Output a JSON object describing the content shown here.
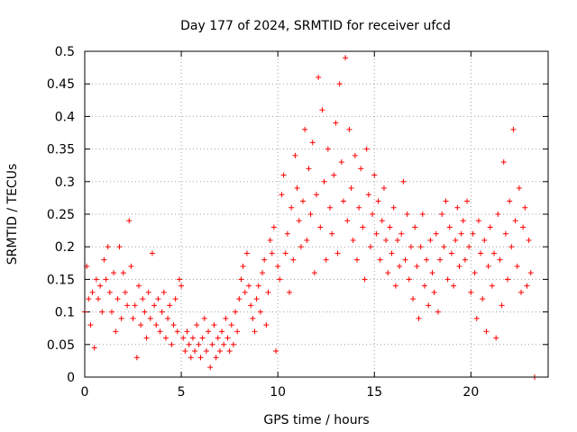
{
  "chart_data": {
    "type": "scatter",
    "title": "Day 177 of 2024, SRMTID for receiver ufcd",
    "xlabel": "GPS time / hours",
    "ylabel": "SRMTID / TECUs",
    "xlim": [
      0,
      24
    ],
    "ylim": [
      0,
      0.5
    ],
    "xticks": [
      0,
      5,
      10,
      15,
      20
    ],
    "yticks": [
      0,
      0.05,
      0.1,
      0.15,
      0.2,
      0.25,
      0.3,
      0.35,
      0.4,
      0.45,
      0.5
    ],
    "grid": true,
    "marker": "plus",
    "color": "#ff0000",
    "series": [
      {
        "name": "SRMTID",
        "points": [
          [
            0.0,
            0.1
          ],
          [
            0.1,
            0.17
          ],
          [
            0.2,
            0.12
          ],
          [
            0.3,
            0.08
          ],
          [
            0.4,
            0.13
          ],
          [
            0.5,
            0.045
          ],
          [
            0.6,
            0.15
          ],
          [
            0.7,
            0.12
          ],
          [
            0.8,
            0.14
          ],
          [
            0.9,
            0.1
          ],
          [
            1.0,
            0.18
          ],
          [
            1.1,
            0.15
          ],
          [
            1.2,
            0.2
          ],
          [
            1.3,
            0.13
          ],
          [
            1.4,
            0.1
          ],
          [
            1.5,
            0.16
          ],
          [
            1.6,
            0.07
          ],
          [
            1.7,
            0.12
          ],
          [
            1.8,
            0.2
          ],
          [
            1.9,
            0.09
          ],
          [
            2.0,
            0.16
          ],
          [
            2.1,
            0.13
          ],
          [
            2.2,
            0.11
          ],
          [
            2.3,
            0.24
          ],
          [
            2.4,
            0.17
          ],
          [
            2.5,
            0.09
          ],
          [
            2.6,
            0.11
          ],
          [
            2.7,
            0.03
          ],
          [
            2.8,
            0.14
          ],
          [
            2.9,
            0.08
          ],
          [
            3.0,
            0.12
          ],
          [
            3.1,
            0.1
          ],
          [
            3.2,
            0.06
          ],
          [
            3.3,
            0.13
          ],
          [
            3.4,
            0.09
          ],
          [
            3.5,
            0.19
          ],
          [
            3.6,
            0.11
          ],
          [
            3.7,
            0.08
          ],
          [
            3.8,
            0.12
          ],
          [
            3.9,
            0.07
          ],
          [
            4.0,
            0.1
          ],
          [
            4.1,
            0.13
          ],
          [
            4.2,
            0.06
          ],
          [
            4.3,
            0.09
          ],
          [
            4.4,
            0.11
          ],
          [
            4.5,
            0.05
          ],
          [
            4.6,
            0.08
          ],
          [
            4.7,
            0.12
          ],
          [
            4.8,
            0.07
          ],
          [
            4.9,
            0.15
          ],
          [
            5.0,
            0.14
          ],
          [
            5.1,
            0.06
          ],
          [
            5.2,
            0.04
          ],
          [
            5.3,
            0.07
          ],
          [
            5.4,
            0.05
          ],
          [
            5.5,
            0.03
          ],
          [
            5.6,
            0.06
          ],
          [
            5.7,
            0.04
          ],
          [
            5.8,
            0.08
          ],
          [
            5.9,
            0.05
          ],
          [
            6.0,
            0.03
          ],
          [
            6.1,
            0.06
          ],
          [
            6.2,
            0.09
          ],
          [
            6.3,
            0.04
          ],
          [
            6.4,
            0.07
          ],
          [
            6.5,
            0.015
          ],
          [
            6.6,
            0.05
          ],
          [
            6.7,
            0.08
          ],
          [
            6.8,
            0.03
          ],
          [
            6.9,
            0.06
          ],
          [
            7.0,
            0.04
          ],
          [
            7.1,
            0.07
          ],
          [
            7.2,
            0.05
          ],
          [
            7.3,
            0.09
          ],
          [
            7.4,
            0.06
          ],
          [
            7.5,
            0.04
          ],
          [
            7.6,
            0.08
          ],
          [
            7.7,
            0.05
          ],
          [
            7.8,
            0.1
          ],
          [
            7.9,
            0.07
          ],
          [
            8.0,
            0.12
          ],
          [
            8.1,
            0.15
          ],
          [
            8.2,
            0.17
          ],
          [
            8.3,
            0.13
          ],
          [
            8.4,
            0.19
          ],
          [
            8.5,
            0.14
          ],
          [
            8.6,
            0.11
          ],
          [
            8.7,
            0.09
          ],
          [
            8.8,
            0.07
          ],
          [
            8.9,
            0.12
          ],
          [
            9.0,
            0.14
          ],
          [
            9.1,
            0.1
          ],
          [
            9.2,
            0.16
          ],
          [
            9.3,
            0.18
          ],
          [
            9.4,
            0.08
          ],
          [
            9.5,
            0.13
          ],
          [
            9.6,
            0.21
          ],
          [
            9.7,
            0.19
          ],
          [
            9.8,
            0.23
          ],
          [
            9.9,
            0.04
          ],
          [
            10.0,
            0.17
          ],
          [
            10.1,
            0.15
          ],
          [
            10.2,
            0.28
          ],
          [
            10.3,
            0.31
          ],
          [
            10.4,
            0.19
          ],
          [
            10.5,
            0.22
          ],
          [
            10.6,
            0.13
          ],
          [
            10.7,
            0.26
          ],
          [
            10.8,
            0.18
          ],
          [
            10.9,
            0.34
          ],
          [
            11.0,
            0.29
          ],
          [
            11.1,
            0.24
          ],
          [
            11.2,
            0.2
          ],
          [
            11.3,
            0.27
          ],
          [
            11.4,
            0.38
          ],
          [
            11.5,
            0.21
          ],
          [
            11.6,
            0.32
          ],
          [
            11.7,
            0.25
          ],
          [
            11.8,
            0.36
          ],
          [
            11.9,
            0.16
          ],
          [
            12.0,
            0.28
          ],
          [
            12.1,
            0.46
          ],
          [
            12.2,
            0.23
          ],
          [
            12.3,
            0.41
          ],
          [
            12.4,
            0.3
          ],
          [
            12.5,
            0.18
          ],
          [
            12.6,
            0.35
          ],
          [
            12.7,
            0.26
          ],
          [
            12.8,
            0.22
          ],
          [
            12.9,
            0.31
          ],
          [
            13.0,
            0.39
          ],
          [
            13.1,
            0.19
          ],
          [
            13.2,
            0.45
          ],
          [
            13.3,
            0.33
          ],
          [
            13.4,
            0.27
          ],
          [
            13.5,
            0.49
          ],
          [
            13.6,
            0.24
          ],
          [
            13.7,
            0.38
          ],
          [
            13.8,
            0.29
          ],
          [
            13.9,
            0.21
          ],
          [
            14.0,
            0.34
          ],
          [
            14.1,
            0.18
          ],
          [
            14.2,
            0.26
          ],
          [
            14.3,
            0.32
          ],
          [
            14.4,
            0.23
          ],
          [
            14.5,
            0.15
          ],
          [
            14.6,
            0.35
          ],
          [
            14.7,
            0.28
          ],
          [
            14.8,
            0.2
          ],
          [
            14.9,
            0.25
          ],
          [
            15.0,
            0.31
          ],
          [
            15.1,
            0.22
          ],
          [
            15.2,
            0.27
          ],
          [
            15.3,
            0.18
          ],
          [
            15.4,
            0.24
          ],
          [
            15.5,
            0.29
          ],
          [
            15.6,
            0.21
          ],
          [
            15.7,
            0.16
          ],
          [
            15.8,
            0.23
          ],
          [
            15.9,
            0.19
          ],
          [
            16.0,
            0.26
          ],
          [
            16.1,
            0.14
          ],
          [
            16.2,
            0.21
          ],
          [
            16.3,
            0.17
          ],
          [
            16.4,
            0.22
          ],
          [
            16.5,
            0.3
          ],
          [
            16.6,
            0.18
          ],
          [
            16.7,
            0.25
          ],
          [
            16.8,
            0.15
          ],
          [
            16.9,
            0.2
          ],
          [
            17.0,
            0.12
          ],
          [
            17.1,
            0.23
          ],
          [
            17.2,
            0.17
          ],
          [
            17.3,
            0.09
          ],
          [
            17.4,
            0.2
          ],
          [
            17.5,
            0.25
          ],
          [
            17.6,
            0.14
          ],
          [
            17.7,
            0.18
          ],
          [
            17.8,
            0.11
          ],
          [
            17.9,
            0.21
          ],
          [
            18.0,
            0.16
          ],
          [
            18.1,
            0.13
          ],
          [
            18.2,
            0.22
          ],
          [
            18.3,
            0.1
          ],
          [
            18.4,
            0.18
          ],
          [
            18.5,
            0.25
          ],
          [
            18.6,
            0.2
          ],
          [
            18.7,
            0.27
          ],
          [
            18.8,
            0.15
          ],
          [
            18.9,
            0.23
          ],
          [
            19.0,
            0.19
          ],
          [
            19.1,
            0.14
          ],
          [
            19.2,
            0.21
          ],
          [
            19.3,
            0.26
          ],
          [
            19.4,
            0.17
          ],
          [
            19.5,
            0.22
          ],
          [
            19.6,
            0.24
          ],
          [
            19.7,
            0.18
          ],
          [
            19.8,
            0.27
          ],
          [
            19.9,
            0.2
          ],
          [
            20.0,
            0.13
          ],
          [
            20.1,
            0.22
          ],
          [
            20.2,
            0.16
          ],
          [
            20.3,
            0.09
          ],
          [
            20.4,
            0.24
          ],
          [
            20.5,
            0.19
          ],
          [
            20.6,
            0.12
          ],
          [
            20.7,
            0.21
          ],
          [
            20.8,
            0.07
          ],
          [
            20.9,
            0.17
          ],
          [
            21.0,
            0.23
          ],
          [
            21.1,
            0.14
          ],
          [
            21.2,
            0.19
          ],
          [
            21.3,
            0.06
          ],
          [
            21.4,
            0.25
          ],
          [
            21.5,
            0.18
          ],
          [
            21.6,
            0.11
          ],
          [
            21.7,
            0.33
          ],
          [
            21.8,
            0.22
          ],
          [
            21.9,
            0.15
          ],
          [
            22.0,
            0.27
          ],
          [
            22.1,
            0.2
          ],
          [
            22.2,
            0.38
          ],
          [
            22.3,
            0.24
          ],
          [
            22.4,
            0.17
          ],
          [
            22.5,
            0.29
          ],
          [
            22.6,
            0.13
          ],
          [
            22.7,
            0.23
          ],
          [
            22.8,
            0.26
          ],
          [
            22.9,
            0.14
          ],
          [
            23.0,
            0.21
          ],
          [
            23.1,
            0.16
          ],
          [
            23.3,
            0.0
          ]
        ]
      }
    ]
  }
}
